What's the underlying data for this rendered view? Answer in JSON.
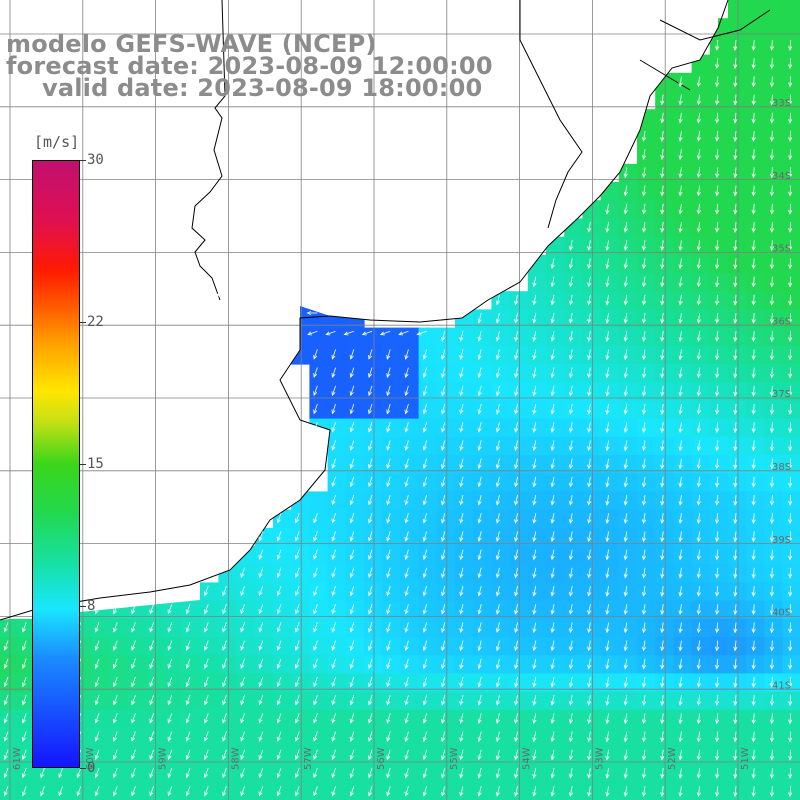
{
  "title": {
    "line1": "modelo GEFS-WAVE (NCEP)",
    "line2": "forecast date: 2023-08-09 12:00:00",
    "line3": "valid date: 2023-08-09 18:00:00"
  },
  "colorbar": {
    "unit": "[m/s]",
    "min": 0,
    "max": 30,
    "ticks": [
      {
        "value": 30,
        "label": "30"
      },
      {
        "value": 22,
        "label": "22"
      },
      {
        "value": 15,
        "label": "15"
      },
      {
        "value": 8,
        "label": "8"
      },
      {
        "value": 0,
        "label": "0"
      }
    ],
    "colors": {
      "0": "#1414ff",
      "8": "#19e6ff",
      "15": "#3ad61a",
      "22": "#ff5a00",
      "30": "#c01070"
    }
  },
  "map": {
    "variable": "wind speed",
    "units": "m/s",
    "arrow_color": "#ffffff",
    "land_color": "#ffffff",
    "coastline_color": "#000000",
    "grid_color": "#808080",
    "longitude_labels": [
      "61W",
      "60W",
      "59W",
      "58W",
      "57W",
      "56W",
      "55W",
      "54W",
      "53W",
      "52W",
      "51W"
    ],
    "latitude_labels": [
      "33S",
      "34S",
      "35S",
      "36S",
      "37S",
      "38S",
      "39S",
      "40S",
      "41S"
    ],
    "dominant_direction": "towards south-southwest",
    "regions": [
      {
        "name": "Rio de la Plata estuary",
        "speed_ms": 3
      },
      {
        "name": "offshore south central",
        "speed_ms": 6
      },
      {
        "name": "shelf north",
        "speed_ms": 8
      },
      {
        "name": "northeast open ocean",
        "speed_ms": 12
      },
      {
        "name": "southern band",
        "speed_ms": 10
      }
    ]
  }
}
